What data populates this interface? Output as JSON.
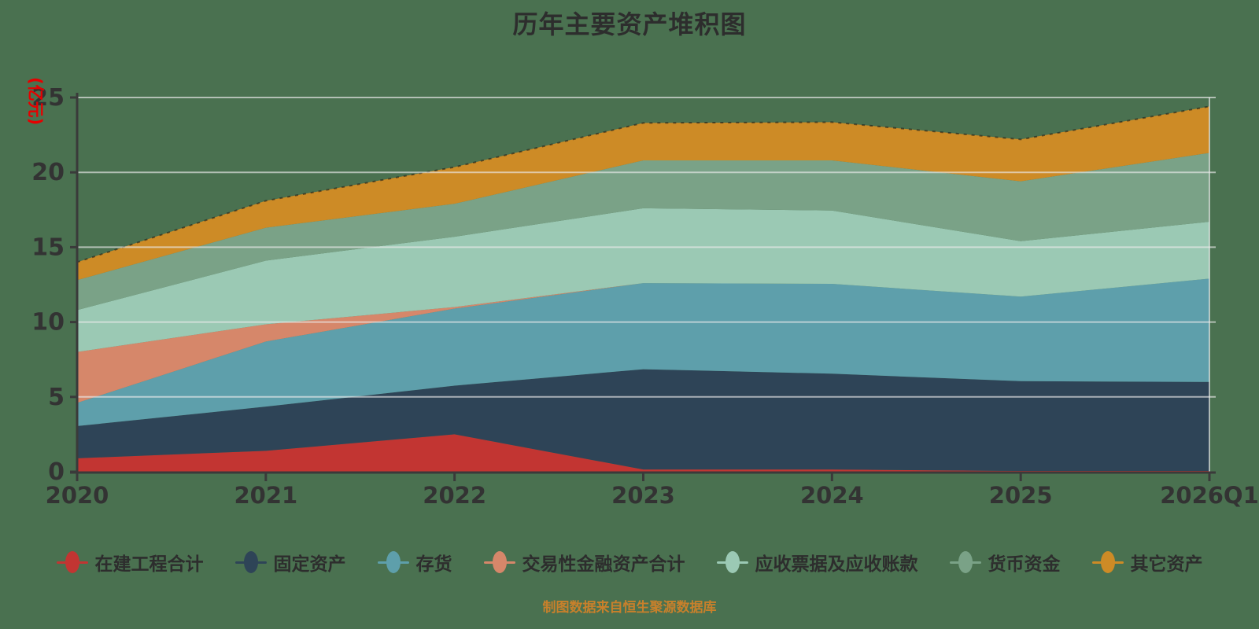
{
  "title": "历年主要资产堆积图",
  "footer": "制图数据来自恒生聚源数据库",
  "colors": {
    "background": "#4a7150",
    "axis": "#3a3a3a",
    "grid": "rgba(235,235,235,0.65)",
    "axis_label": "#333333",
    "y_axis_name": "#e60000",
    "title": "#2d2d2d",
    "footer": "#c8802b"
  },
  "chart_data": {
    "type": "area",
    "stacked": true,
    "title": "历年主要资产堆积图",
    "ylabel": "(亿元)",
    "xlabel": "",
    "ylim": [
      0,
      25
    ],
    "yticks": [
      0,
      5,
      10,
      15,
      20,
      25
    ],
    "grid": true,
    "legend_position": "bottom",
    "x": [
      "2020",
      "2021",
      "2022",
      "2023",
      "2024",
      "2025",
      "2026Q1"
    ],
    "series": [
      {
        "name": "在建工程合计",
        "key": "construction-in-progress",
        "color": "#c23532",
        "values": [
          0.9,
          1.4,
          2.5,
          0.15,
          0.15,
          0.05,
          0.05
        ]
      },
      {
        "name": "固定资产",
        "key": "fixed-assets",
        "color": "#2e4457",
        "values": [
          2.15,
          2.95,
          3.25,
          6.7,
          6.4,
          6.0,
          5.95
        ]
      },
      {
        "name": "存货",
        "key": "inventory",
        "color": "#5e9fab",
        "values": [
          1.55,
          4.35,
          5.15,
          5.75,
          6.0,
          5.65,
          6.9
        ]
      },
      {
        "name": "交易性金融资产合计",
        "key": "trading-financial-assets",
        "color": "#d6876a",
        "values": [
          3.4,
          1.15,
          0.1,
          0.0,
          0.0,
          0.0,
          0.0
        ]
      },
      {
        "name": "应收票据及应收账款",
        "key": "notes-receivable",
        "color": "#9bc9b4",
        "values": [
          2.8,
          4.25,
          4.7,
          5.0,
          4.9,
          3.7,
          3.8
        ]
      },
      {
        "name": "货币资金",
        "key": "monetary-funds",
        "color": "#7aa287",
        "values": [
          2.0,
          2.2,
          2.2,
          3.2,
          3.35,
          4.0,
          4.6
        ]
      },
      {
        "name": "其它资产",
        "key": "other-assets",
        "color": "#cd8b26",
        "values": [
          1.2,
          1.8,
          2.45,
          2.5,
          2.55,
          2.8,
          3.1
        ]
      }
    ]
  }
}
